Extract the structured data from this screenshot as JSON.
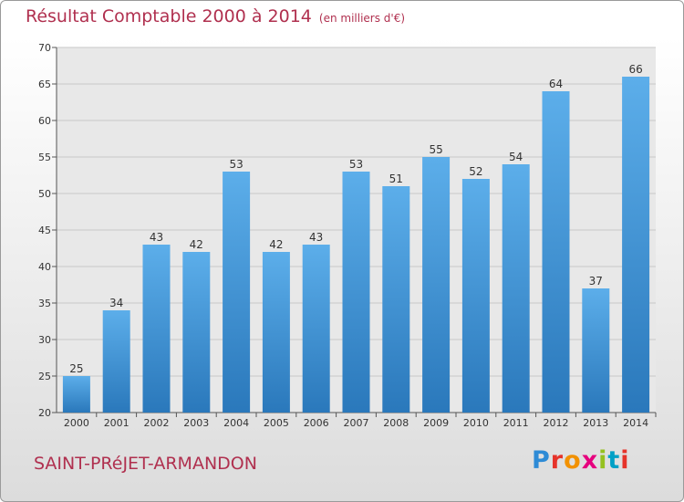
{
  "header": {
    "title": "Résultat Comptable 2000 à 2014",
    "unit": "(en milliers d'€)"
  },
  "footer": {
    "commune": "SAINT-PRéJET-ARMANDON",
    "logo": "Proxiti"
  },
  "colors": {
    "title": "#b0304f",
    "bar_top": "#5caeea",
    "bar_bottom": "#2a78bb"
  },
  "chart_data": {
    "type": "bar",
    "title": "Résultat Comptable 2000 à 2014",
    "subtitle": "(en milliers d'€)",
    "categories": [
      "2000",
      "2001",
      "2002",
      "2003",
      "2004",
      "2005",
      "2006",
      "2007",
      "2008",
      "2009",
      "2010",
      "2011",
      "2012",
      "2013",
      "2014"
    ],
    "values": [
      25,
      34,
      43,
      42,
      53,
      42,
      43,
      53,
      51,
      55,
      52,
      54,
      64,
      37,
      66
    ],
    "ylim": [
      20,
      70
    ],
    "yticks": [
      20,
      25,
      30,
      35,
      40,
      45,
      50,
      55,
      60,
      65,
      70
    ],
    "grid": true,
    "xlabel": "",
    "ylabel": ""
  }
}
